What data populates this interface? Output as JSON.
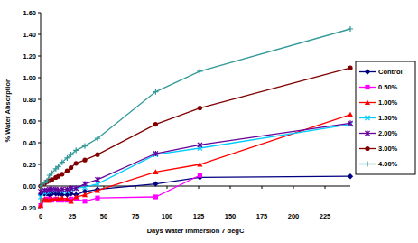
{
  "chart_data": {
    "type": "line",
    "x_label": "Days Water Immersion 7 degC",
    "y_label": "% Water Absorption",
    "x": [
      0,
      3,
      5,
      7,
      9,
      12,
      14,
      17,
      21,
      24,
      28,
      35,
      45,
      91,
      126,
      245
    ],
    "xlim": [
      0,
      245
    ],
    "xticks": [
      0,
      25,
      50,
      75,
      100,
      125,
      150,
      175,
      200,
      225
    ],
    "ylim": [
      -0.2,
      1.6
    ],
    "yticks": [
      {
        "value": -0.2,
        "label": "-0.20"
      },
      {
        "value": 0,
        "label": "0.00"
      },
      {
        "value": 0.2,
        "label": "0.20"
      },
      {
        "value": 0.4,
        "label": "0.40"
      },
      {
        "value": 0.6,
        "label": "0.60"
      },
      {
        "value": 0.8,
        "label": "0.80"
      },
      {
        "value": 1.0,
        "label": "1.00"
      },
      {
        "value": 1.2,
        "label": "1.20"
      },
      {
        "value": 1.4,
        "label": "1.40"
      },
      {
        "value": 1.6,
        "label": "1.60"
      }
    ],
    "grid": false,
    "legend": "right",
    "series": [
      {
        "name": "Control",
        "color": "#000080",
        "marker": "diamond",
        "values": [
          -0.08,
          -0.07,
          -0.07,
          -0.08,
          -0.07,
          -0.07,
          -0.07,
          -0.08,
          -0.08,
          -0.07,
          -0.08,
          -0.05,
          -0.03,
          0.02,
          0.08,
          0.09
        ]
      },
      {
        "name": "0.50%",
        "color": "#FF00FF",
        "marker": "square",
        "values": [
          -0.18,
          -0.13,
          -0.12,
          -0.12,
          -0.13,
          -0.12,
          -0.13,
          -0.13,
          -0.13,
          -0.12,
          -0.12,
          -0.14,
          -0.11,
          -0.1,
          0.1,
          null
        ]
      },
      {
        "name": "1.00%",
        "color": "#FF0000",
        "marker": "triangle",
        "values": [
          -0.18,
          -0.12,
          -0.13,
          -0.13,
          -0.12,
          -0.12,
          -0.12,
          -0.11,
          -0.12,
          -0.14,
          -0.1,
          -0.08,
          -0.04,
          0.13,
          0.2,
          0.66
        ]
      },
      {
        "name": "1.50%",
        "color": "#00CCFF",
        "marker": "x",
        "values": [
          -0.1,
          -0.06,
          -0.05,
          -0.05,
          -0.04,
          -0.04,
          -0.04,
          -0.05,
          -0.05,
          -0.03,
          -0.02,
          -0.01,
          0.02,
          0.29,
          0.35,
          0.57
        ]
      },
      {
        "name": "2.00%",
        "color": "#660099",
        "marker": "asterisk",
        "values": [
          -0.05,
          -0.04,
          -0.04,
          -0.03,
          -0.03,
          -0.03,
          -0.04,
          -0.03,
          -0.03,
          -0.02,
          -0.02,
          0.02,
          0.06,
          0.3,
          0.38,
          0.58
        ]
      },
      {
        "name": "3.00%",
        "color": "#800000",
        "marker": "circle",
        "values": [
          0,
          0.02,
          0.04,
          0.05,
          0.06,
          0.08,
          0.09,
          0.11,
          0.14,
          0.17,
          0.21,
          0.24,
          0.29,
          0.57,
          0.72,
          1.09
        ]
      },
      {
        "name": "4.00%",
        "color": "#339999",
        "marker": "plus",
        "values": [
          0,
          0.03,
          0.05,
          0.1,
          0.12,
          0.16,
          0.18,
          0.22,
          0.26,
          0.29,
          0.33,
          0.37,
          0.44,
          0.87,
          1.06,
          1.45
        ]
      }
    ]
  }
}
